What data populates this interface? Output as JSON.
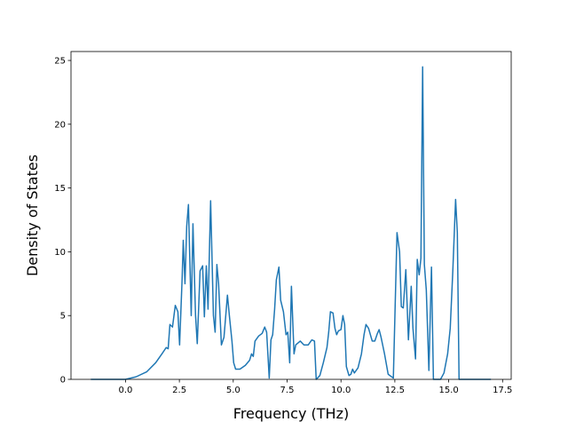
{
  "chart_data": {
    "type": "line",
    "xlabel": "Frequency (THz)",
    "ylabel": "Density of States",
    "xlim": [
      -2.53,
      17.9
    ],
    "ylim": [
      0,
      25.7
    ],
    "xticks": [
      {
        "value": 0,
        "label": "0.0"
      },
      {
        "value": 2.5,
        "label": "2.5"
      },
      {
        "value": 5,
        "label": "5.0"
      },
      {
        "value": 7.5,
        "label": "7.5"
      },
      {
        "value": 10,
        "label": "10.0"
      },
      {
        "value": 12.5,
        "label": "12.5"
      },
      {
        "value": 15,
        "label": "15.0"
      },
      {
        "value": 17.5,
        "label": "17.5"
      }
    ],
    "yticks": [
      0,
      5,
      10,
      15,
      20,
      25
    ],
    "series": [
      {
        "color": "#1f77b4",
        "x": [
          -1.61,
          0,
          0.49,
          0.99,
          1.4,
          1.69,
          1.89,
          1.98,
          2.06,
          2.18,
          2.31,
          2.43,
          2.51,
          2.63,
          2.68,
          2.76,
          2.84,
          2.92,
          3.05,
          3.13,
          3.25,
          3.33,
          3.46,
          3.58,
          3.66,
          3.75,
          3.83,
          3.95,
          4.08,
          4.16,
          4.24,
          4.32,
          4.45,
          4.57,
          4.73,
          4.82,
          4.94,
          5.02,
          5.11,
          5.31,
          5.56,
          5.76,
          5.85,
          5.93,
          6.01,
          6.18,
          6.34,
          6.46,
          6.55,
          6.67,
          6.75,
          6.83,
          6.92,
          7.0,
          7.12,
          7.2,
          7.33,
          7.45,
          7.53,
          7.62,
          7.7,
          7.82,
          7.9,
          8.11,
          8.28,
          8.48,
          8.65,
          8.77,
          8.85,
          9.02,
          9.18,
          9.35,
          9.43,
          9.51,
          9.63,
          9.72,
          9.8,
          9.88,
          10.0,
          10.09,
          10.17,
          10.25,
          10.37,
          10.46,
          10.54,
          10.62,
          10.79,
          10.95,
          11.07,
          11.16,
          11.28,
          11.45,
          11.57,
          11.69,
          11.77,
          11.86,
          12.02,
          12.19,
          12.43,
          12.6,
          12.72,
          12.8,
          12.89,
          13.01,
          13.13,
          13.26,
          13.34,
          13.46,
          13.54,
          13.63,
          13.71,
          13.79,
          13.87,
          13.96,
          14.08,
          14.2,
          14.29,
          14.62,
          14.78,
          14.95,
          15.07,
          15.19,
          15.32,
          15.4,
          15.48,
          16.96
        ],
        "values": [
          0,
          0,
          0.2,
          0.6,
          1.3,
          2.0,
          2.5,
          2.4,
          4.3,
          4.1,
          5.8,
          5.3,
          2.7,
          8.0,
          10.9,
          7.5,
          12.0,
          13.7,
          5.0,
          12.2,
          5.0,
          2.8,
          8.5,
          8.9,
          4.9,
          8.9,
          5.5,
          14.0,
          5.0,
          3.7,
          9.0,
          7.5,
          2.7,
          3.3,
          6.6,
          5.0,
          3.0,
          1.3,
          0.8,
          0.8,
          1.1,
          1.5,
          2.0,
          1.8,
          3.0,
          3.4,
          3.6,
          4.1,
          3.7,
          0.1,
          3.1,
          3.5,
          5.5,
          7.8,
          8.8,
          6.2,
          5.3,
          3.5,
          3.7,
          1.3,
          7.3,
          2.0,
          2.7,
          3.0,
          2.7,
          2.7,
          3.1,
          3.0,
          0,
          0.3,
          1.3,
          2.5,
          3.7,
          5.3,
          5.2,
          4.0,
          3.5,
          3.8,
          3.9,
          5.0,
          4.3,
          1.0,
          0.3,
          0.4,
          0.8,
          0.5,
          0.9,
          2.0,
          3.5,
          4.3,
          4.0,
          3.0,
          3.0,
          3.6,
          3.9,
          3.3,
          2.0,
          0.4,
          0.1,
          11.5,
          10.0,
          5.7,
          5.6,
          8.6,
          3.1,
          7.3,
          4.0,
          1.6,
          9.4,
          8.2,
          9.5,
          24.5,
          9.0,
          7.0,
          0.7,
          8.8,
          0,
          0,
          0.5,
          2.0,
          4.0,
          8.5,
          14.1,
          11.5,
          0,
          0
        ]
      }
    ]
  }
}
